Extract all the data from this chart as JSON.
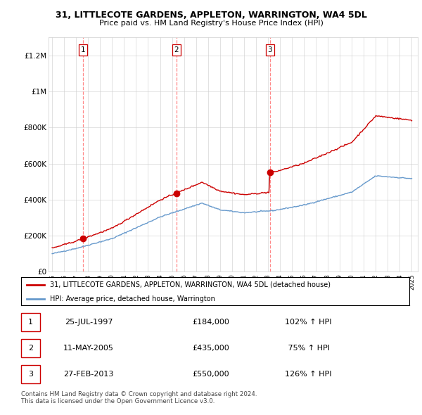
{
  "title_line1": "31, LITTLECOTE GARDENS, APPLETON, WARRINGTON, WA4 5DL",
  "title_line2": "Price paid vs. HM Land Registry's House Price Index (HPI)",
  "sale_dates_num": [
    1997.56,
    2005.36,
    2013.16
  ],
  "sale_prices": [
    184000,
    435000,
    550000
  ],
  "sale_labels": [
    "1",
    "2",
    "3"
  ],
  "sale_color": "#cc0000",
  "hpi_color": "#6699cc",
  "ylim": [
    0,
    1300000
  ],
  "yticks": [
    0,
    200000,
    400000,
    600000,
    800000,
    1000000,
    1200000
  ],
  "ytick_labels": [
    "£0",
    "£200K",
    "£400K",
    "£600K",
    "£800K",
    "£1M",
    "£1.2M"
  ],
  "legend_label_red": "31, LITTLECOTE GARDENS, APPLETON, WARRINGTON, WA4 5DL (detached house)",
  "legend_label_blue": "HPI: Average price, detached house, Warrington",
  "table_rows": [
    [
      "1",
      "25-JUL-1997",
      "£184,000",
      "102% ↑ HPI"
    ],
    [
      "2",
      "11-MAY-2005",
      "£435,000",
      " 75% ↑ HPI"
    ],
    [
      "3",
      "27-FEB-2013",
      "£550,000",
      "126% ↑ HPI"
    ]
  ],
  "footnote": "Contains HM Land Registry data © Crown copyright and database right 2024.\nThis data is licensed under the Open Government Licence v3.0.",
  "vline_dates": [
    1997.56,
    2005.36,
    2013.16
  ],
  "background_color": "#ffffff",
  "grid_color": "#cccccc",
  "xmin": 1995,
  "xmax": 2025
}
